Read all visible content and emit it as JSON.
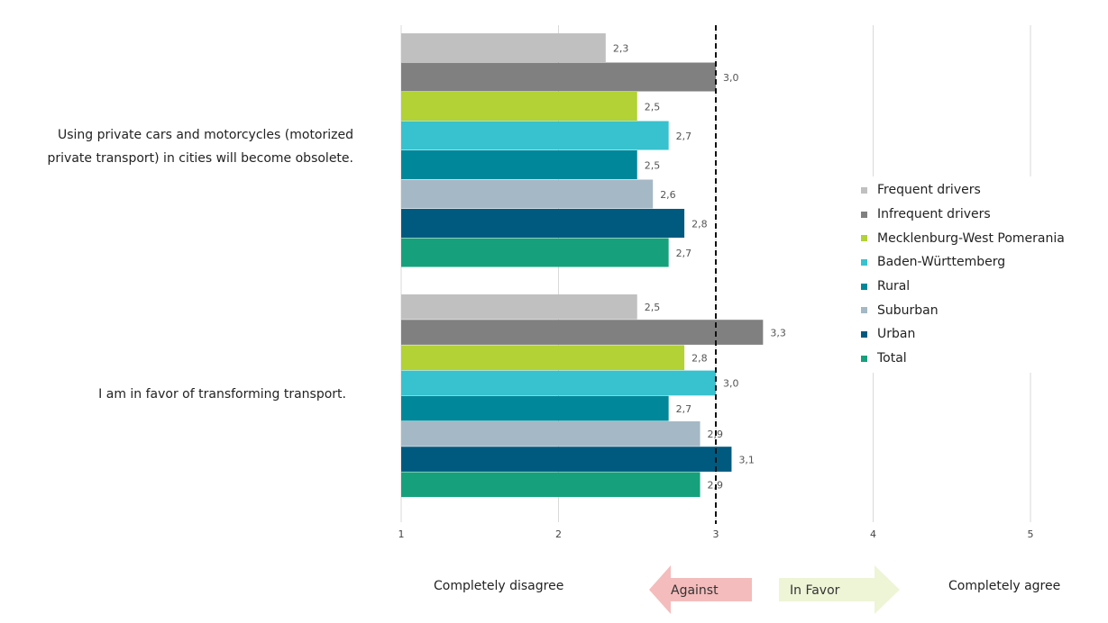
{
  "chart_data": {
    "type": "bar",
    "orientation": "horizontal",
    "categories": [
      "Using private cars and motorcycles (motorized private transport) in cities will become obsolete.",
      "I am in favor of transforming transport."
    ],
    "series": [
      {
        "name": "Frequent drivers",
        "color": "#c0c0c0",
        "values": [
          2.3,
          2.5
        ],
        "labels": [
          "2,3",
          "2,5"
        ]
      },
      {
        "name": "Infrequent drivers",
        "color": "#808080",
        "values": [
          3.0,
          3.3
        ],
        "labels": [
          "3,0",
          "3,3"
        ]
      },
      {
        "name": "Mecklenburg-West Pomerania",
        "color": "#b2d235",
        "values": [
          2.5,
          2.8
        ],
        "labels": [
          "2,5",
          "2,8"
        ]
      },
      {
        "name": "Baden-Württemberg",
        "color": "#38c1ce",
        "values": [
          2.7,
          3.0
        ],
        "labels": [
          "2,7",
          "3,0"
        ]
      },
      {
        "name": "Rural",
        "color": "#00889a",
        "values": [
          2.5,
          2.7
        ],
        "labels": [
          "2,5",
          "2,7"
        ]
      },
      {
        "name": "Suburban",
        "color": "#a5b8c5",
        "values": [
          2.6,
          2.9
        ],
        "labels": [
          "2,6",
          "2,9"
        ]
      },
      {
        "name": "Urban",
        "color": "#005a80",
        "values": [
          2.8,
          3.1
        ],
        "labels": [
          "2,8",
          "3,1"
        ]
      },
      {
        "name": "Total",
        "color": "#17a07c",
        "values": [
          2.7,
          2.9
        ],
        "labels": [
          "2,7",
          "2,9"
        ]
      }
    ],
    "xlim": [
      1,
      5
    ],
    "xticks": [
      "1",
      "2",
      "3",
      "4",
      "5"
    ],
    "reference_line": 3,
    "grid": true,
    "legend_position": "right",
    "scale_labels": {
      "left": "Completely disagree",
      "right": "Completely agree"
    },
    "arrows": {
      "against": {
        "label": "Against",
        "color": "#f4bcbc"
      },
      "in_favor": {
        "label": "In Favor",
        "color": "#eef5d7"
      }
    }
  }
}
